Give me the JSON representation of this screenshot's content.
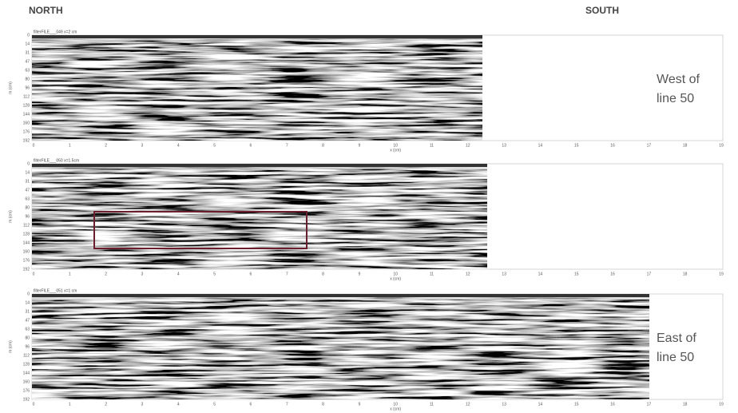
{
  "header": {
    "north": "NORTH",
    "south": "SOUTH"
  },
  "y_axis_label": "m (cm)",
  "x_axis_label": "x (cm)",
  "y_ticks": [
    0,
    14,
    31,
    47,
    63,
    80,
    96,
    112,
    128,
    144,
    160,
    176,
    192
  ],
  "x_ticks": [
    0,
    1,
    2,
    3,
    4,
    5,
    6,
    7,
    8,
    9,
    10,
    11,
    12,
    13,
    14,
    15,
    16,
    17,
    18,
    19
  ],
  "panels": [
    {
      "title": "filterFILE___049  x=2 cm",
      "side_label": [
        "West of",
        "line 50"
      ]
    },
    {
      "title": "filterFILE___050  x=1.5cm"
    },
    {
      "title": "filterFILE___051  x=1 cm",
      "side_label": [
        "East of",
        "line 50"
      ]
    }
  ]
}
